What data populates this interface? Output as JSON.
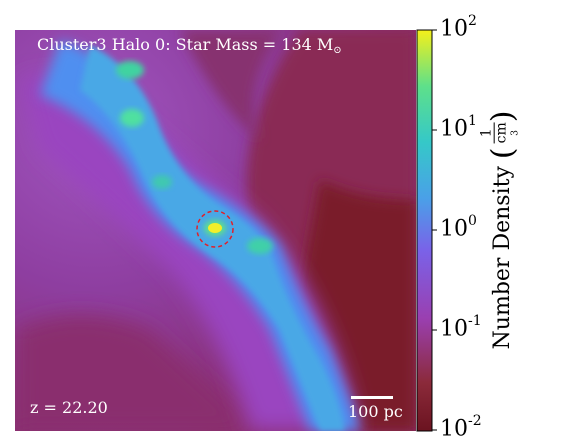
{
  "title": "Cluster3 Halo 0: Star Mass = 134 M",
  "title_subscript": "⊙",
  "redshift_label": "z = 22.20",
  "scalebar_label": "100 pc",
  "colorbar": {
    "label": "Number Density",
    "unit_numerator": "1",
    "unit_denominator": "cm",
    "unit_denominator_power": "3",
    "scale": "log",
    "range": [
      0.01,
      100
    ],
    "colormap": "viridis-like over dark red background",
    "ticks": [
      {
        "base": "10",
        "exp": "2"
      },
      {
        "base": "10",
        "exp": "1"
      },
      {
        "base": "10",
        "exp": "0"
      },
      {
        "base": "10",
        "exp": "-1"
      },
      {
        "base": "10",
        "exp": "-2"
      }
    ]
  },
  "colors": {
    "background_low": "#7a1d2a",
    "mid_purple": "#9a3fb0",
    "filament": "#4aa8e0",
    "knot": "#3fd3a0",
    "peak": "#f2ef2a",
    "marker": "#e0202a"
  }
}
